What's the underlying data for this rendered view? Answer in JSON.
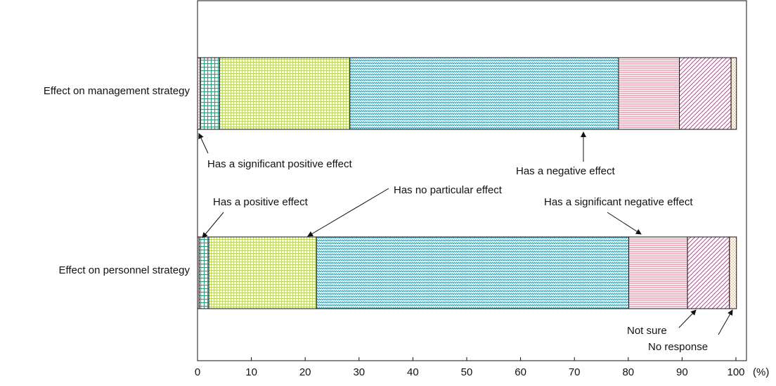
{
  "chart_data": {
    "type": "bar",
    "stacked": true,
    "orientation": "horizontal",
    "categories": [
      "Effect on management strategy",
      "Effect on personnel strategy"
    ],
    "series": [
      {
        "name": "Has a significant positive effect",
        "values": [
          0.5,
          0.3
        ],
        "color": "#d9896a",
        "pattern": "dots"
      },
      {
        "name": "Has a positive effect",
        "values": [
          3.6,
          1.8
        ],
        "color": "#2f9a7c",
        "pattern": "grid"
      },
      {
        "name": "Has no particular effect",
        "values": [
          24.2,
          20.0
        ],
        "color": "#c8de7a",
        "pattern": "fine-grid"
      },
      {
        "name": "Has a negative effect",
        "values": [
          49.9,
          58.0
        ],
        "color": "#2aa9c1",
        "pattern": "zigzag"
      },
      {
        "name": "Has a significant negative effect",
        "values": [
          11.3,
          10.9
        ],
        "color": "#e26a86",
        "pattern": "horizontal-lines"
      },
      {
        "name": "Not sure",
        "values": [
          9.6,
          7.8
        ],
        "color": "#cc3f9b",
        "pattern": "diagonal-lines"
      },
      {
        "name": "No response",
        "values": [
          1.0,
          1.3
        ],
        "color": "#e0a050",
        "pattern": "dots"
      }
    ],
    "xlim": [
      0,
      100
    ],
    "xticks": [
      "0",
      "10",
      "20",
      "30",
      "40",
      "50",
      "60",
      "70",
      "80",
      "90",
      "100"
    ],
    "xunit": "(%)",
    "annotations": [
      {
        "text": "Has a significant positive effect"
      },
      {
        "text": "Has a negative effect"
      },
      {
        "text": "Has a positive effect"
      },
      {
        "text": "Has no particular effect"
      },
      {
        "text": "Has a significant negative effect"
      },
      {
        "text": "Not sure"
      },
      {
        "text": "No response"
      }
    ],
    "grid": false,
    "legend": "none"
  }
}
